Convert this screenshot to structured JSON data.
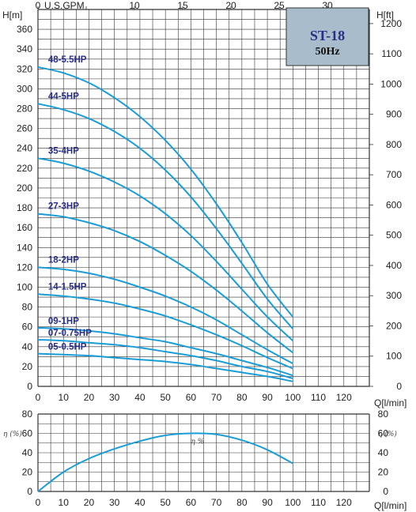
{
  "colors": {
    "curve": "#1a9dd6",
    "grid": "#333333",
    "label": "#2a2f86",
    "badge_fill": "#a9bccb"
  },
  "badge": {
    "model": "ST-18",
    "frequency": "50Hz"
  },
  "chart_data": [
    {
      "type": "line",
      "title": "",
      "xlabel": "Q[l/min]",
      "ylabel": "H[m]",
      "y2label": "H[ft]",
      "x2label": "U.S.GPM",
      "xlim": [
        0,
        130
      ],
      "ylim": [
        0,
        380
      ],
      "x_ticks": [
        0,
        10,
        20,
        30,
        40,
        50,
        60,
        70,
        80,
        90,
        100,
        110,
        120
      ],
      "y_ticks": [
        0,
        20,
        40,
        60,
        80,
        100,
        120,
        140,
        160,
        180,
        200,
        220,
        240,
        260,
        280,
        300,
        320,
        340,
        360
      ],
      "y2_ticks": [
        0,
        100,
        200,
        300,
        400,
        500,
        600,
        700,
        800,
        900,
        1000,
        1100,
        1200
      ],
      "x2_ticks": [
        0,
        5,
        10,
        15,
        20,
        25,
        30
      ],
      "x2_tick_labels": [
        "0",
        "",
        "10",
        "15",
        "20",
        "25",
        "30"
      ],
      "grid": true,
      "x": [
        0,
        10,
        20,
        30,
        40,
        50,
        60,
        70,
        80,
        90,
        100
      ],
      "series": [
        {
          "name": "48-5.5HP",
          "values": [
            322,
            316,
            306,
            291,
            272,
            248,
            219,
            184,
            145,
            103,
            70
          ]
        },
        {
          "name": "44-5HP",
          "values": [
            285,
            279,
            270,
            257,
            240,
            218,
            191,
            159,
            124,
            88,
            58
          ]
        },
        {
          "name": "35-4HP",
          "values": [
            230,
            225,
            217,
            206,
            192,
            174,
            152,
            126,
            98,
            70,
            46
          ]
        },
        {
          "name": "27-3HP",
          "values": [
            174,
            171,
            165,
            157,
            146,
            132,
            116,
            97,
            76,
            54,
            34
          ]
        },
        {
          "name": "18-2HP",
          "values": [
            120,
            118,
            114,
            108,
            100,
            91,
            80,
            67,
            52,
            37,
            23
          ]
        },
        {
          "name": "14-1.5HP",
          "values": [
            93,
            91,
            88,
            84,
            78,
            71,
            62,
            52,
            41,
            29,
            18
          ]
        },
        {
          "name": "09-1HP",
          "values": [
            59,
            58,
            56,
            53,
            49,
            45,
            39,
            33,
            26,
            19,
            11
          ]
        },
        {
          "name": "07-0.75HP",
          "values": [
            47,
            46,
            44,
            42,
            39,
            35,
            31,
            26,
            20,
            15,
            8
          ]
        },
        {
          "name": "05-0.5HP",
          "values": [
            33,
            32,
            31,
            29,
            27,
            25,
            22,
            18,
            14,
            10,
            5
          ]
        }
      ]
    },
    {
      "type": "line",
      "title": "",
      "xlabel": "Q[l/min]",
      "ylabel": "η (%)",
      "y2label": "η (%)",
      "xlim": [
        0,
        130
      ],
      "ylim": [
        0,
        80
      ],
      "x_ticks": [
        0,
        10,
        20,
        30,
        40,
        50,
        60,
        70,
        80,
        90,
        100,
        110,
        120
      ],
      "y_ticks": [
        0,
        20,
        40,
        60,
        80
      ],
      "grid": true,
      "x": [
        0,
        10,
        20,
        30,
        40,
        50,
        60,
        70,
        80,
        90,
        100
      ],
      "series": [
        {
          "name": "η %",
          "values": [
            0,
            20,
            34,
            44,
            52,
            58,
            60,
            59,
            53,
            43,
            29
          ]
        }
      ]
    }
  ]
}
